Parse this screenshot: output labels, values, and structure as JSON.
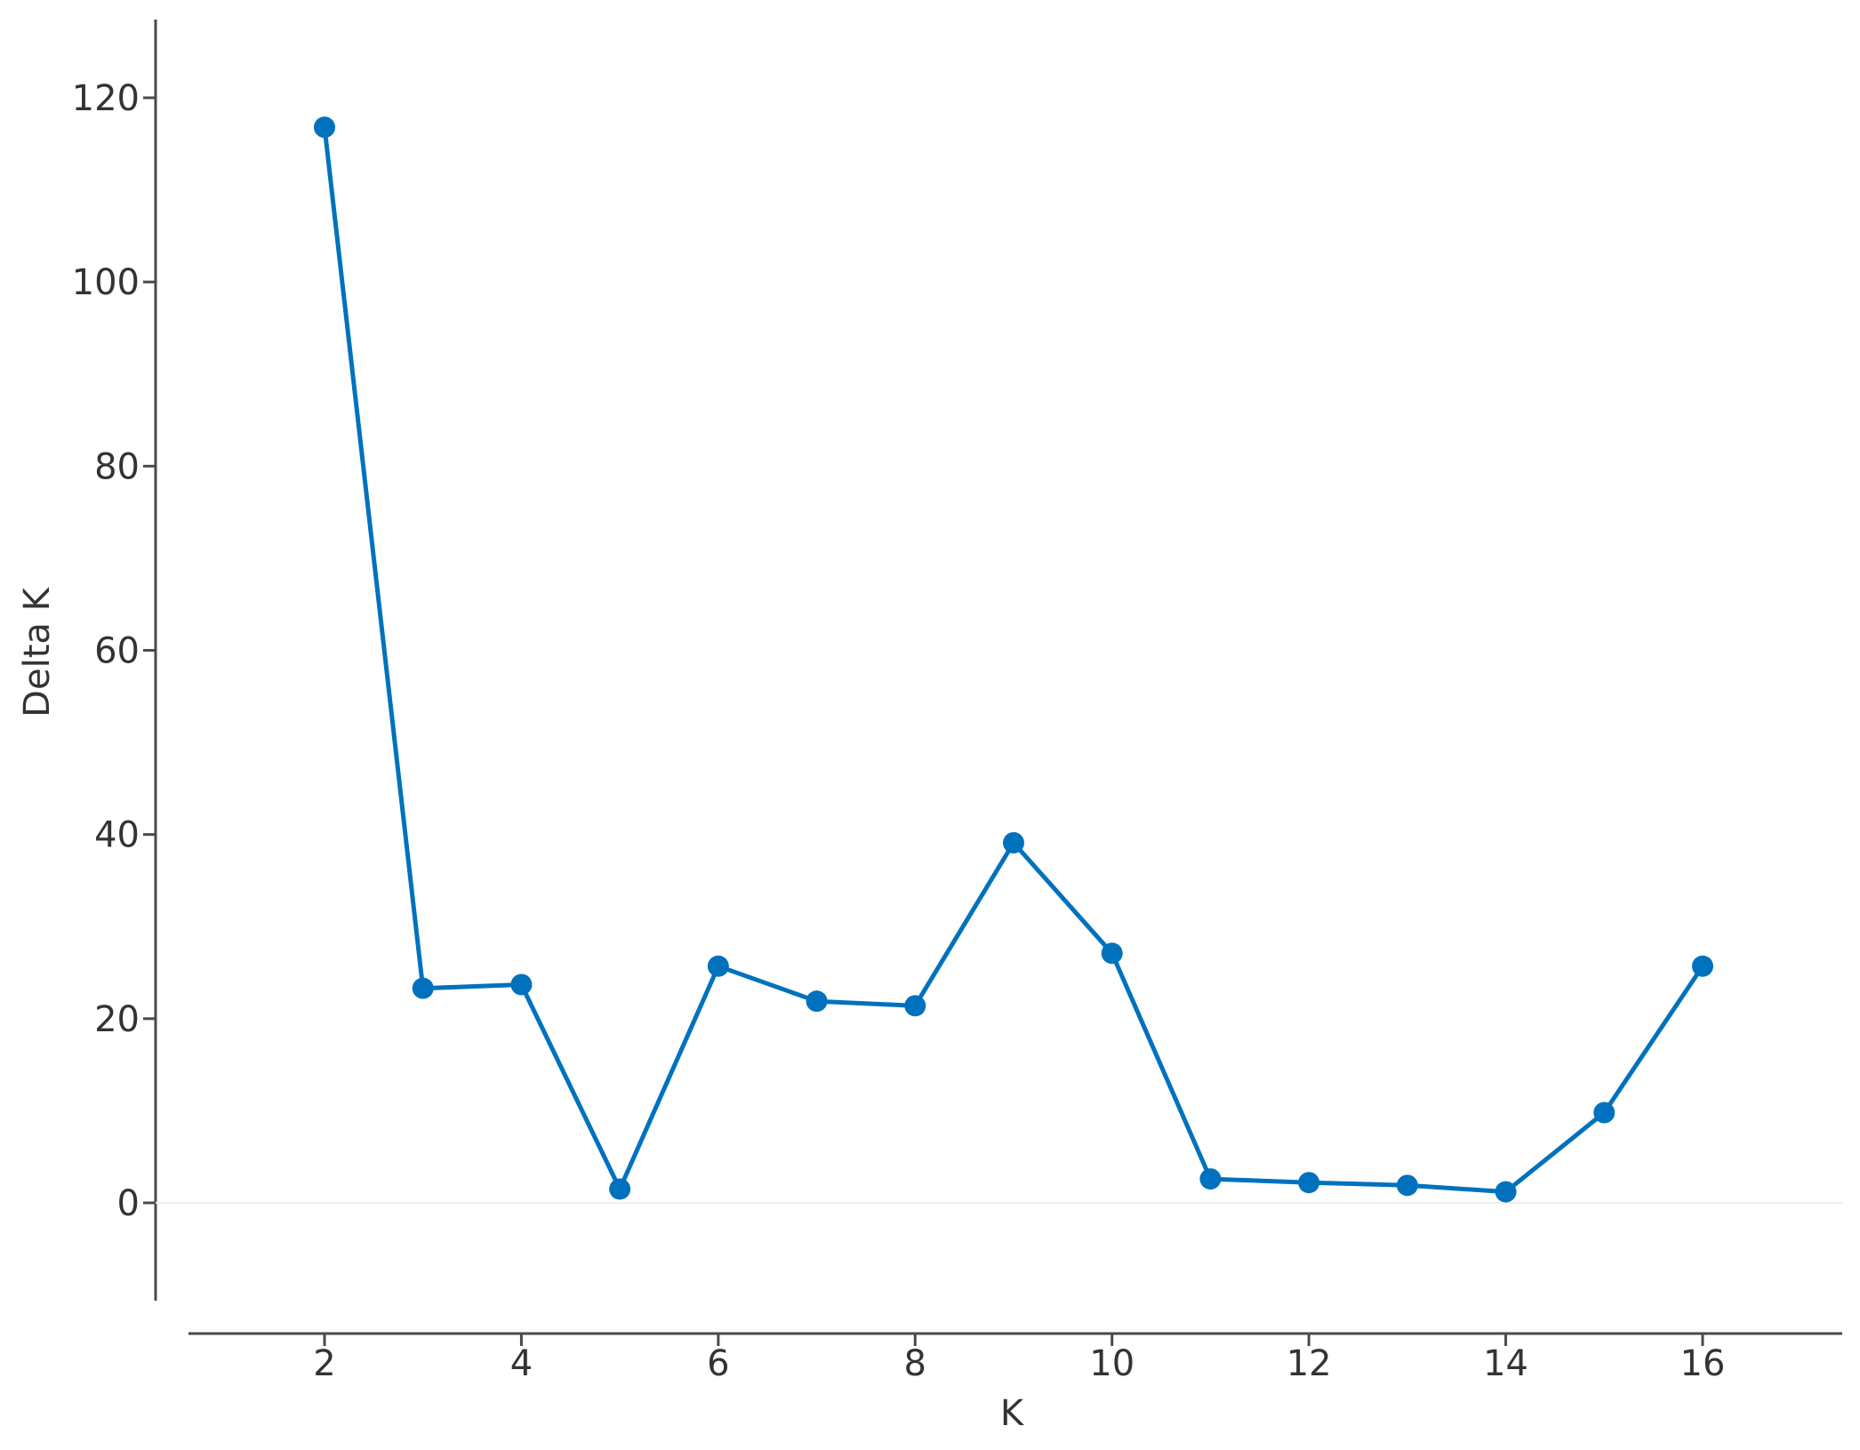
{
  "chart_data": {
    "type": "line",
    "title": "",
    "xlabel": "K",
    "ylabel": "Delta K",
    "xlim": [
      1,
      17.5
    ],
    "ylim": [
      -10,
      128
    ],
    "xticks": [
      "2",
      "4",
      "6",
      "8",
      "10",
      "12",
      "14",
      "16"
    ],
    "yticks": [
      "0",
      "20",
      "40",
      "60",
      "80",
      "100",
      "120"
    ],
    "grid": false,
    "zero_line": true,
    "series": [
      {
        "color": "#0072bd",
        "x": [
          2,
          3,
          4,
          5,
          6,
          7,
          8,
          9,
          10,
          11,
          12,
          13,
          14,
          15,
          16
        ],
        "y": [
          116.8,
          23.3,
          23.7,
          1.5,
          25.7,
          21.9,
          21.4,
          39.1,
          27.1,
          2.6,
          2.2,
          1.9,
          1.2,
          9.8,
          25.7
        ]
      }
    ]
  }
}
